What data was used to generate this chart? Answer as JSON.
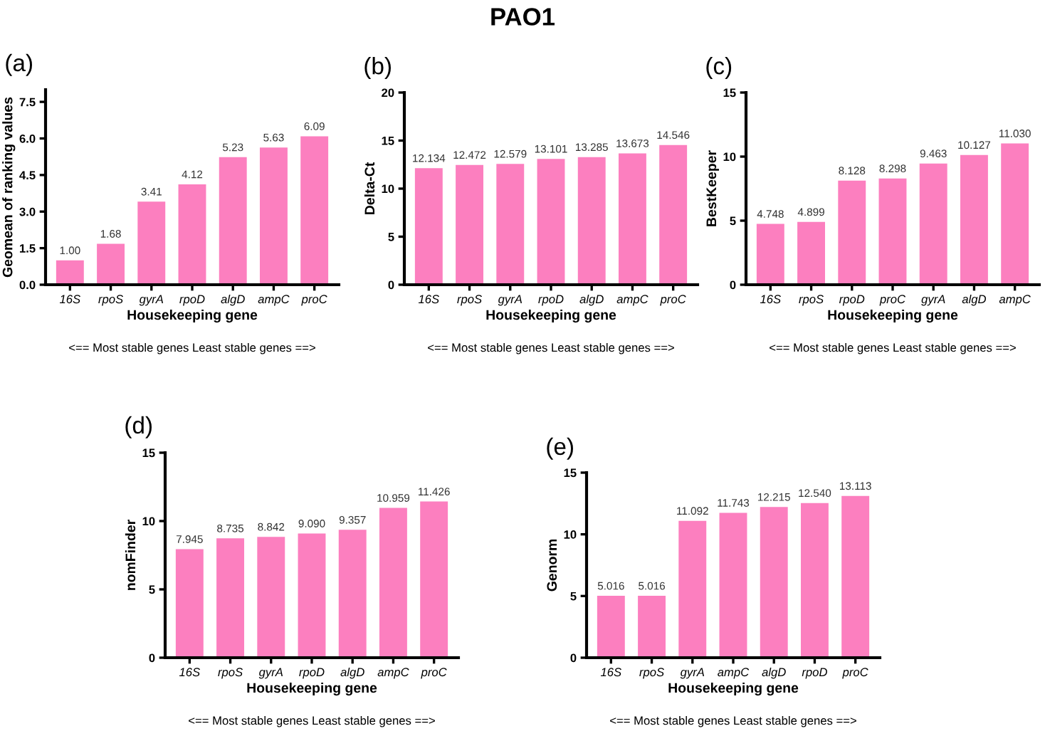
{
  "chart_data": [
    {
      "type": "bar",
      "title": "(a)",
      "xlabel": "Housekeeping gene",
      "ylabel": "Geomean of ranking values",
      "categories": [
        "16S",
        "rpoS",
        "gyrA",
        "rpoD",
        "algD",
        "ampC",
        "proC"
      ],
      "values": [
        1.0,
        1.68,
        3.41,
        4.12,
        5.23,
        5.63,
        6.09
      ],
      "value_labels": [
        "1.00",
        "1.68",
        "3.41",
        "4.12",
        "5.23",
        "5.63",
        "6.09"
      ],
      "color": "#fc7fbf",
      "ylim": [
        0,
        8
      ],
      "yticks": [
        {
          "value": 0,
          "label": "0.0"
        },
        1.5,
        {
          "value": 3,
          "label": "3.0"
        },
        4.5,
        {
          "value": 6,
          "label": "6.0"
        },
        7.5
      ],
      "grid": false,
      "annotations": [
        "PAO1",
        "<== Most stable genes Least stable genes ==>"
      ]
    },
    {
      "type": "bar",
      "title": "(b)",
      "xlabel": "Housekeeping gene",
      "ylabel": "Delta-Ct",
      "categories": [
        "16S",
        "rpoS",
        "gyrA",
        "rpoD",
        "algD",
        "ampC",
        "proC"
      ],
      "values": [
        12.134,
        12.472,
        12.579,
        13.101,
        13.285,
        13.673,
        14.546
      ],
      "value_labels": [
        "12.134",
        "12.472",
        "12.579",
        "13.101",
        "13.285",
        "13.673",
        "14.546"
      ],
      "color": "#fc7fbf",
      "ylim": [
        0,
        20
      ],
      "yticks": [
        0,
        5,
        10,
        15,
        20
      ],
      "grid": false,
      "annotations": [
        "<== Most stable genes Least stable genes ==>"
      ]
    },
    {
      "type": "bar",
      "title": "(c)",
      "xlabel": "Housekeeping gene",
      "ylabel": "BestKeeper",
      "categories": [
        "16S",
        "rpoS",
        "rpoD",
        "proC",
        "gyrA",
        "algD",
        "ampC"
      ],
      "values": [
        4.748,
        4.899,
        8.128,
        8.298,
        9.463,
        10.127,
        11.03
      ],
      "value_labels": [
        "4.748",
        "4.899",
        "8.128",
        "8.298",
        "9.463",
        "10.127",
        "11.030"
      ],
      "color": "#fc7fbf",
      "ylim": [
        0,
        15
      ],
      "yticks": [
        0,
        5,
        10,
        15
      ],
      "grid": false,
      "annotations": [
        "<== Most stable genes Least stable genes ==>"
      ]
    },
    {
      "type": "bar",
      "title": "(d)",
      "xlabel": "Housekeeping gene",
      "ylabel": "nomFinder",
      "categories": [
        "16S",
        "rpoS",
        "gyrA",
        "rpoD",
        "algD",
        "ampC",
        "proC"
      ],
      "values": [
        7.945,
        8.735,
        8.842,
        9.09,
        9.357,
        10.959,
        11.426
      ],
      "value_labels": [
        "7.945",
        "8.735",
        "8.842",
        "9.090",
        "9.357",
        "10.959",
        "11.426"
      ],
      "color": "#fc7fbf",
      "ylim": [
        0,
        15
      ],
      "yticks": [
        0,
        5,
        10,
        15
      ],
      "grid": false,
      "annotations": [
        "<== Most stable genes Least stable genes ==>"
      ]
    },
    {
      "type": "bar",
      "title": "(e)",
      "xlabel": "Housekeeping gene",
      "ylabel": "Genorm",
      "categories": [
        "16S",
        "rpoS",
        "gyrA",
        "ampC",
        "algD",
        "rpoD",
        "proC"
      ],
      "values": [
        5.016,
        5.016,
        11.092,
        11.743,
        12.215,
        12.54,
        13.113
      ],
      "value_labels": [
        "5.016",
        "5.016",
        "11.092",
        "11.743",
        "12.215",
        "12.540",
        "13.113"
      ],
      "color": "#fc7fbf",
      "ylim": [
        0,
        15
      ],
      "yticks": [
        0,
        5,
        10,
        15
      ],
      "grid": false,
      "annotations": [
        "<== Most stable genes Least stable genes ==>"
      ]
    }
  ]
}
